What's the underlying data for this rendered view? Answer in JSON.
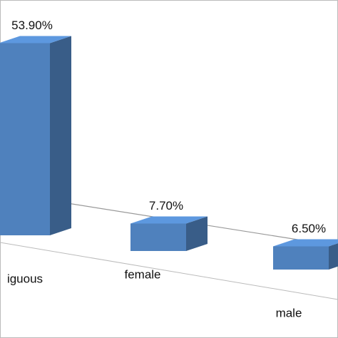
{
  "chart_data": {
    "type": "bar3d",
    "categories": [
      "iguous",
      "female",
      "male"
    ],
    "values": [
      53.9,
      7.7,
      6.5
    ],
    "value_labels": [
      "53.90%",
      "7.70%",
      "6.50%"
    ],
    "color": "#4f81bd"
  }
}
